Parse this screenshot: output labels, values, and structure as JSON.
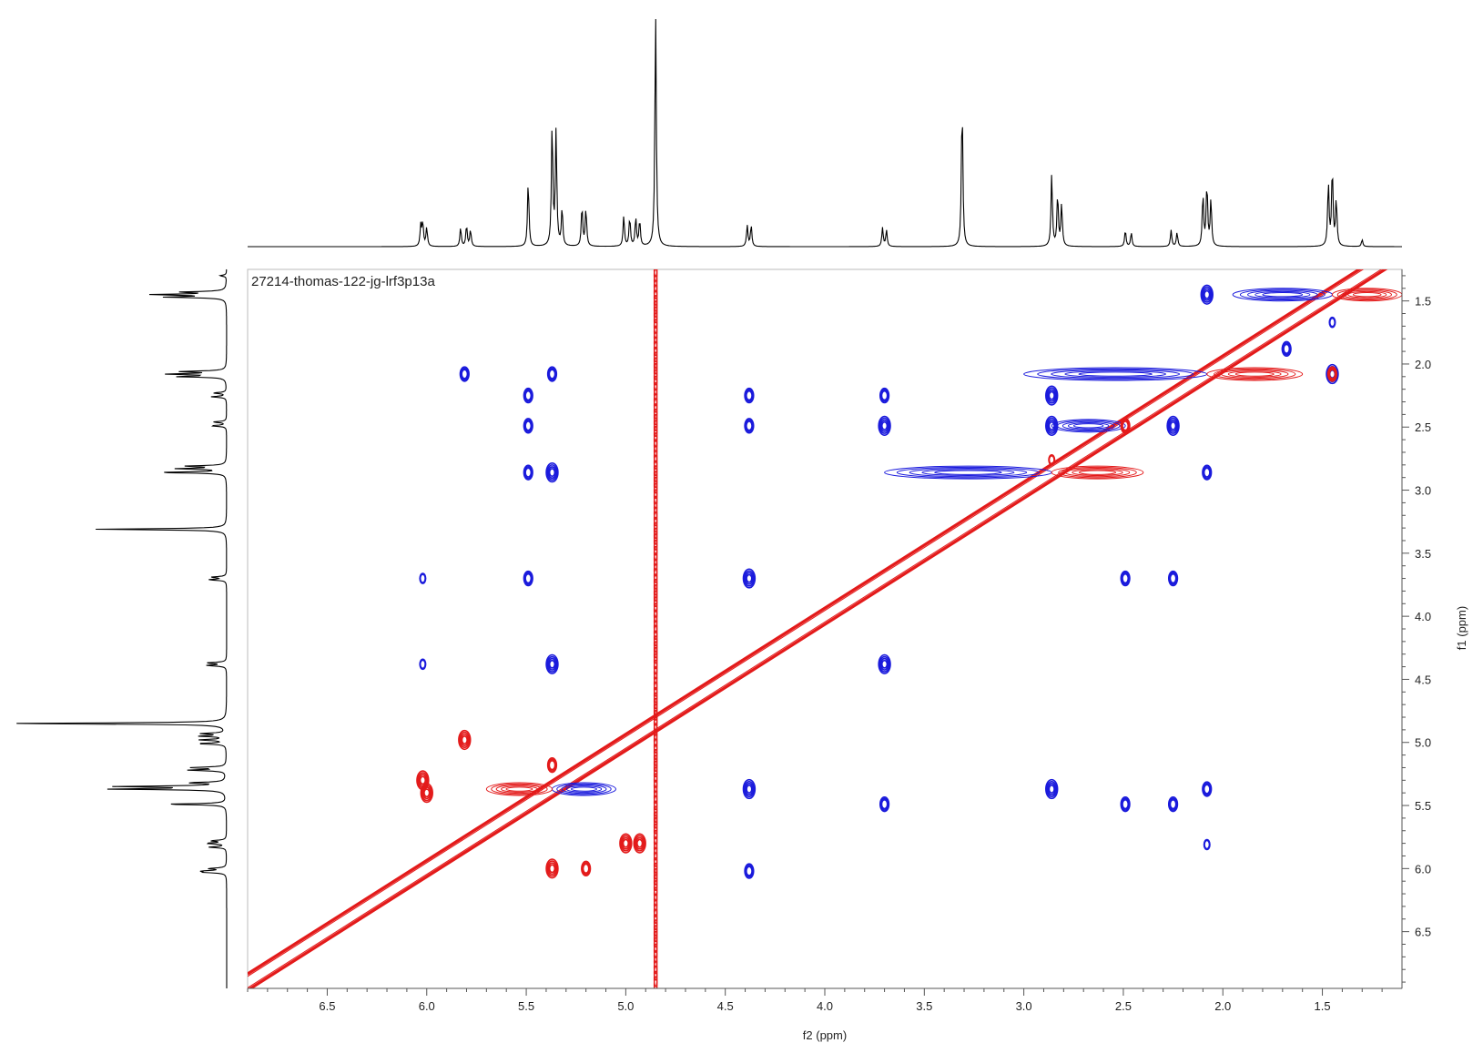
{
  "chart_data": {
    "type": "2d-nmr-contour",
    "title": "27214-thomas-122-jg-lrf3p13a",
    "xlabel": "f2 (ppm)",
    "ylabel": "f1 (ppm)",
    "x_axis": {
      "min": 1.1,
      "max": 6.9,
      "reversed": true,
      "ticks": [
        6.5,
        6.0,
        5.5,
        5.0,
        4.5,
        4.0,
        3.5,
        3.0,
        2.5,
        2.0,
        1.5
      ],
      "tick_labels": [
        "6.5",
        "6.0",
        "5.5",
        "5.0",
        "4.5",
        "4.0",
        "3.5",
        "3.0",
        "2.5",
        "2.0",
        "1.5"
      ]
    },
    "y_axis": {
      "min": 1.25,
      "max": 6.95,
      "reversed": false,
      "side": "right",
      "ticks": [
        1.5,
        2.0,
        2.5,
        3.0,
        3.5,
        4.0,
        4.5,
        5.0,
        5.5,
        6.0,
        6.5
      ],
      "tick_labels": [
        "1.5",
        "2.0",
        "2.5",
        "3.0",
        "3.5",
        "4.0",
        "4.5",
        "5.0",
        "5.5",
        "6.0",
        "6.5"
      ]
    },
    "colors": {
      "positive": "#1a1adc",
      "negative": "#e31a1a",
      "spectrum": "#000000",
      "frame": "#bbbbbb"
    },
    "projection_peaks": [
      {
        "ppm": 6.03,
        "height": 0.09
      },
      {
        "ppm": 6.02,
        "height": 0.1
      },
      {
        "ppm": 6.0,
        "height": 0.08
      },
      {
        "ppm": 5.83,
        "height": 0.08
      },
      {
        "ppm": 5.8,
        "height": 0.09
      },
      {
        "ppm": 5.78,
        "height": 0.07
      },
      {
        "ppm": 5.49,
        "height": 0.28
      },
      {
        "ppm": 5.37,
        "height": 0.52
      },
      {
        "ppm": 5.35,
        "height": 0.49
      },
      {
        "ppm": 5.32,
        "height": 0.16
      },
      {
        "ppm": 5.22,
        "height": 0.17
      },
      {
        "ppm": 5.2,
        "height": 0.16
      },
      {
        "ppm": 5.01,
        "height": 0.13
      },
      {
        "ppm": 4.98,
        "height": 0.12
      },
      {
        "ppm": 4.95,
        "height": 0.12
      },
      {
        "ppm": 4.93,
        "height": 0.11
      },
      {
        "ppm": 4.85,
        "height": 1.0
      },
      {
        "ppm": 4.39,
        "height": 0.09
      },
      {
        "ppm": 4.37,
        "height": 0.09
      },
      {
        "ppm": 3.71,
        "height": 0.08
      },
      {
        "ppm": 3.69,
        "height": 0.07
      },
      {
        "ppm": 3.31,
        "height": 0.61
      },
      {
        "ppm": 2.86,
        "height": 0.31
      },
      {
        "ppm": 2.83,
        "height": 0.22
      },
      {
        "ppm": 2.81,
        "height": 0.18
      },
      {
        "ppm": 2.49,
        "height": 0.07
      },
      {
        "ppm": 2.46,
        "height": 0.06
      },
      {
        "ppm": 2.26,
        "height": 0.07
      },
      {
        "ppm": 2.23,
        "height": 0.06
      },
      {
        "ppm": 2.1,
        "height": 0.22
      },
      {
        "ppm": 2.08,
        "height": 0.26
      },
      {
        "ppm": 2.06,
        "height": 0.2
      },
      {
        "ppm": 1.47,
        "height": 0.27
      },
      {
        "ppm": 1.45,
        "height": 0.33
      },
      {
        "ppm": 1.43,
        "height": 0.2
      },
      {
        "ppm": 1.3,
        "height": 0.03
      }
    ],
    "diagonal": [
      {
        "f2": 6.9,
        "f1": 6.9
      },
      {
        "f2": 1.1,
        "f1": 1.1
      }
    ],
    "cross_peaks": [
      {
        "f2": 5.81,
        "f1": 2.08,
        "sign": "positive",
        "size": 1
      },
      {
        "f2": 5.49,
        "f1": 2.25,
        "sign": "positive",
        "size": 1
      },
      {
        "f2": 5.49,
        "f1": 2.49,
        "sign": "positive",
        "size": 1
      },
      {
        "f2": 5.49,
        "f1": 2.86,
        "sign": "positive",
        "size": 1
      },
      {
        "f2": 5.37,
        "f1": 2.86,
        "sign": "positive",
        "size": 2
      },
      {
        "f2": 5.37,
        "f1": 2.08,
        "sign": "positive",
        "size": 1
      },
      {
        "f2": 5.49,
        "f1": 3.7,
        "sign": "positive",
        "size": 1
      },
      {
        "f2": 5.37,
        "f1": 4.38,
        "sign": "positive",
        "size": 2
      },
      {
        "f2": 6.02,
        "f1": 3.7,
        "sign": "positive",
        "size": 0
      },
      {
        "f2": 6.02,
        "f1": 4.38,
        "sign": "positive",
        "size": 0
      },
      {
        "f2": 4.38,
        "f1": 2.25,
        "sign": "positive",
        "size": 1
      },
      {
        "f2": 4.38,
        "f1": 2.49,
        "sign": "positive",
        "size": 1
      },
      {
        "f2": 4.38,
        "f1": 3.7,
        "sign": "positive",
        "size": 2
      },
      {
        "f2": 4.38,
        "f1": 5.37,
        "sign": "positive",
        "size": 2
      },
      {
        "f2": 4.38,
        "f1": 6.02,
        "sign": "positive",
        "size": 1
      },
      {
        "f2": 3.7,
        "f1": 2.25,
        "sign": "positive",
        "size": 1
      },
      {
        "f2": 3.7,
        "f1": 2.49,
        "sign": "positive",
        "size": 2
      },
      {
        "f2": 3.7,
        "f1": 4.38,
        "sign": "positive",
        "size": 2
      },
      {
        "f2": 3.7,
        "f1": 5.49,
        "sign": "positive",
        "size": 1
      },
      {
        "f2": 2.86,
        "f1": 2.25,
        "sign": "positive",
        "size": 2
      },
      {
        "f2": 2.86,
        "f1": 2.49,
        "sign": "positive",
        "size": 2
      },
      {
        "f2": 2.86,
        "f1": 5.37,
        "sign": "positive",
        "size": 2
      },
      {
        "f2": 2.49,
        "f1": 3.7,
        "sign": "positive",
        "size": 1
      },
      {
        "f2": 2.49,
        "f1": 5.49,
        "sign": "positive",
        "size": 1
      },
      {
        "f2": 2.25,
        "f1": 3.7,
        "sign": "positive",
        "size": 1
      },
      {
        "f2": 2.25,
        "f1": 5.49,
        "sign": "positive",
        "size": 1
      },
      {
        "f2": 2.25,
        "f1": 2.49,
        "sign": "positive",
        "size": 2
      },
      {
        "f2": 2.08,
        "f1": 2.86,
        "sign": "positive",
        "size": 1
      },
      {
        "f2": 2.08,
        "f1": 5.37,
        "sign": "positive",
        "size": 1
      },
      {
        "f2": 2.08,
        "f1": 5.81,
        "sign": "positive",
        "size": 0
      },
      {
        "f2": 2.08,
        "f1": 1.45,
        "sign": "positive",
        "size": 2
      },
      {
        "f2": 1.45,
        "f1": 2.08,
        "sign": "positive",
        "size": 2
      },
      {
        "f2": 1.45,
        "f1": 1.67,
        "sign": "positive",
        "size": 0
      },
      {
        "f2": 1.68,
        "f1": 1.88,
        "sign": "positive",
        "size": 1
      },
      {
        "f2": 1.45,
        "f1": 2.08,
        "sign": "negative",
        "size": 1
      },
      {
        "f2": 6.02,
        "f1": 5.3,
        "sign": "negative",
        "size": 2
      },
      {
        "f2": 6.0,
        "f1": 5.4,
        "sign": "negative",
        "size": 2
      },
      {
        "f2": 5.81,
        "f1": 4.98,
        "sign": "negative",
        "size": 2
      },
      {
        "f2": 5.0,
        "f1": 5.8,
        "sign": "negative",
        "size": 2
      },
      {
        "f2": 4.93,
        "f1": 5.8,
        "sign": "negative",
        "size": 2
      },
      {
        "f2": 5.37,
        "f1": 6.0,
        "sign": "negative",
        "size": 2
      },
      {
        "f2": 5.2,
        "f1": 6.0,
        "sign": "negative",
        "size": 1
      },
      {
        "f2": 5.37,
        "f1": 5.18,
        "sign": "negative",
        "size": 1
      },
      {
        "f2": 2.86,
        "f1": 2.76,
        "sign": "negative",
        "size": 0
      },
      {
        "f2": 2.49,
        "f1": 2.49,
        "sign": "negative",
        "size": 1
      }
    ],
    "ridges": [
      {
        "f2_from": 2.08,
        "f2_to": 3.0,
        "f1": 2.08,
        "sign": "positive"
      },
      {
        "f2_from": 2.86,
        "f2_to": 3.7,
        "f1": 2.86,
        "sign": "positive"
      },
      {
        "f2_from": 1.45,
        "f2_to": 1.95,
        "f1": 1.45,
        "sign": "positive"
      },
      {
        "f2_from": 2.49,
        "f2_to": 2.86,
        "f1": 2.49,
        "sign": "positive"
      },
      {
        "f2_from": 5.37,
        "f2_to": 5.05,
        "f1": 5.37,
        "sign": "positive"
      },
      {
        "f2_from": 1.1,
        "f2_to": 1.45,
        "f1": 1.45,
        "sign": "negative"
      },
      {
        "f2_from": 1.6,
        "f2_to": 2.08,
        "f1": 2.08,
        "sign": "negative"
      },
      {
        "f2_from": 2.4,
        "f2_to": 2.86,
        "f1": 2.86,
        "sign": "negative"
      },
      {
        "f2_from": 5.37,
        "f2_to": 5.7,
        "f1": 5.37,
        "sign": "negative"
      }
    ],
    "t1_noise_streak": {
      "f2": 4.85,
      "f1_from": 1.25,
      "f1_to": 6.95,
      "sign": "negative"
    }
  }
}
